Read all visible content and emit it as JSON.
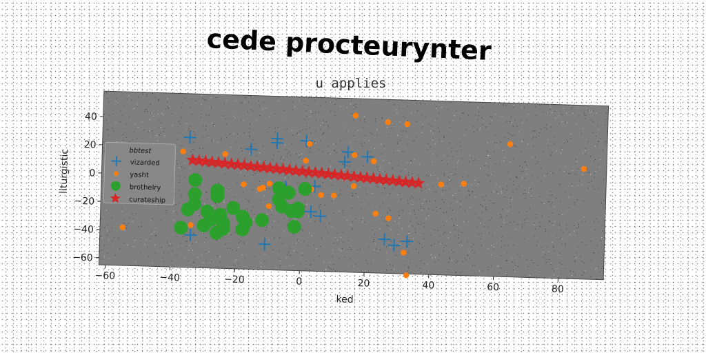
{
  "chart_data": {
    "type": "scatter",
    "title": "cede procteurynter",
    "subtitle": "u applies",
    "xlabel": "ked",
    "ylabel": "liturgistic",
    "xlim": [
      -62,
      94
    ],
    "ylim": [
      -65,
      58
    ],
    "xticks": [
      "−60",
      "−40",
      "−20",
      "0",
      "20",
      "40",
      "60",
      "80"
    ],
    "xtick_values": [
      -60,
      -40,
      -20,
      0,
      20,
      40,
      60,
      80
    ],
    "yticks": [
      "−60",
      "−40",
      "−20",
      "0",
      "20",
      "40"
    ],
    "ytick_values": [
      -60,
      -40,
      -20,
      0,
      20,
      40
    ],
    "grid": false,
    "legend": {
      "title": "bbtest",
      "position": "center-left"
    },
    "colors": {
      "plot_background": "#7f7f7f"
    },
    "series": [
      {
        "name": "vizarded",
        "marker": "plus",
        "color": "#1f77b4",
        "points": [
          [
            -35,
            27
          ],
          [
            -8,
            28
          ],
          [
            -8,
            25
          ],
          [
            1,
            27
          ],
          [
            -16,
            20
          ],
          [
            14,
            20
          ],
          [
            20,
            17
          ],
          [
            13,
            13
          ],
          [
            -5,
            -6
          ],
          [
            -21,
            -22
          ],
          [
            -25,
            -30
          ],
          [
            -34,
            -42
          ],
          [
            -11,
            -47
          ],
          [
            3,
            -23
          ],
          [
            6,
            -26
          ],
          [
            26,
            -41
          ],
          [
            29,
            -45
          ],
          [
            33,
            -42
          ],
          [
            4,
            -5
          ]
        ]
      },
      {
        "name": "yasht",
        "marker": "dot",
        "color": "#ff7f0e",
        "points": [
          [
            16,
            46
          ],
          [
            26,
            42
          ],
          [
            32,
            41
          ],
          [
            64,
            29
          ],
          [
            87,
            13
          ],
          [
            2,
            25
          ],
          [
            16,
            18
          ],
          [
            22,
            14
          ],
          [
            1,
            13
          ],
          [
            -24,
            16
          ],
          [
            -37,
            17
          ],
          [
            43,
            -1
          ],
          [
            50,
            0
          ],
          [
            16,
            -4
          ],
          [
            -18,
            -5
          ],
          [
            -10,
            -4
          ],
          [
            -12,
            -7
          ],
          [
            6,
            -11
          ],
          [
            10,
            -11
          ],
          [
            23,
            -23
          ],
          [
            27,
            -26
          ],
          [
            -10,
            -20
          ],
          [
            33,
            -66
          ],
          [
            32,
            -50
          ],
          [
            -55,
            -38
          ],
          [
            -34,
            -35
          ],
          [
            -13,
            -8
          ],
          [
            3,
            -7
          ]
        ]
      },
      {
        "name": "brothelry",
        "marker": "circle",
        "color": "#2ca02c",
        "points": [
          [
            -33,
            -3
          ],
          [
            -33,
            -13
          ],
          [
            -26,
            -10
          ],
          [
            -26,
            -14
          ],
          [
            -33,
            -20
          ],
          [
            -35,
            -24
          ],
          [
            -29,
            -25
          ],
          [
            -25,
            -27
          ],
          [
            -21,
            -22
          ],
          [
            -18,
            -28
          ],
          [
            -17,
            -32
          ],
          [
            -24,
            -33
          ],
          [
            -28,
            -31
          ],
          [
            -30,
            -35
          ],
          [
            -24,
            -37
          ],
          [
            -37,
            -37
          ],
          [
            -18,
            -37
          ],
          [
            -26,
            -40
          ],
          [
            -12,
            -30
          ],
          [
            -7,
            -7
          ],
          [
            -7,
            -15
          ],
          [
            -4,
            -10
          ],
          [
            -6,
            -20
          ],
          [
            -3,
            -23
          ],
          [
            -1,
            -21
          ],
          [
            1,
            -7
          ],
          [
            -1,
            -23
          ],
          [
            -2,
            -34
          ]
        ]
      },
      {
        "name": "curateship",
        "marker": "star",
        "color": "#d62728",
        "points": [
          [
            -34,
            11
          ],
          [
            -32,
            10.7
          ],
          [
            -30,
            10.4
          ],
          [
            -28,
            10
          ],
          [
            -26,
            9.7
          ],
          [
            -24,
            9.4
          ],
          [
            -22,
            9
          ],
          [
            -20,
            8.7
          ],
          [
            -18,
            8.4
          ],
          [
            -16,
            8
          ],
          [
            -14,
            7.7
          ],
          [
            -12,
            7.4
          ],
          [
            -10,
            7
          ],
          [
            -8,
            6.7
          ],
          [
            -6,
            6.4
          ],
          [
            -4,
            6
          ],
          [
            -2,
            5.7
          ],
          [
            0,
            5.4
          ],
          [
            2,
            5
          ],
          [
            4,
            4.7
          ],
          [
            6,
            4.4
          ],
          [
            8,
            4
          ],
          [
            10,
            3.7
          ],
          [
            12,
            3.3
          ],
          [
            14,
            3
          ],
          [
            16,
            2.7
          ],
          [
            18,
            2.3
          ],
          [
            20,
            2
          ],
          [
            22,
            1.7
          ],
          [
            24,
            1.3
          ],
          [
            26,
            1
          ],
          [
            28,
            0.7
          ],
          [
            30,
            0.3
          ],
          [
            32,
            0
          ],
          [
            34,
            -0.3
          ],
          [
            36,
            -0.6
          ]
        ]
      }
    ]
  }
}
